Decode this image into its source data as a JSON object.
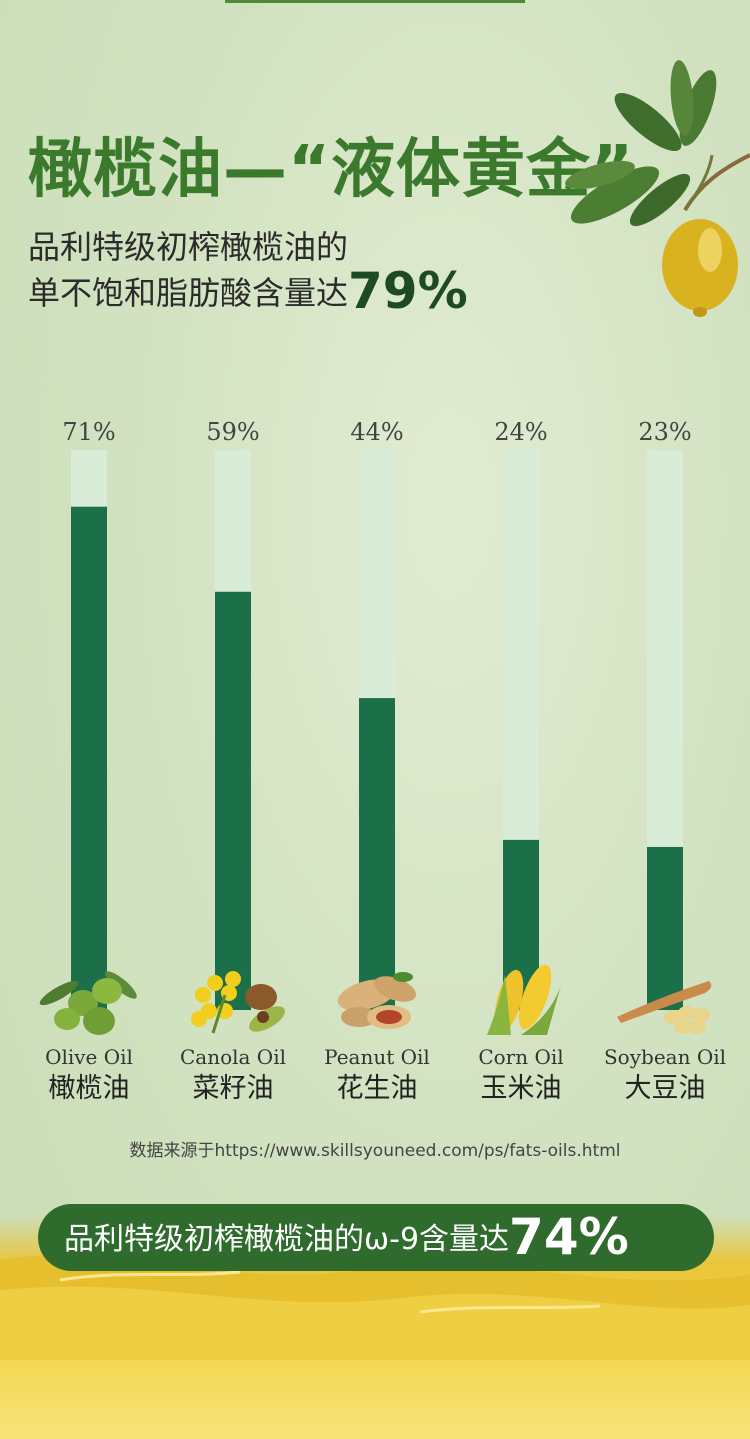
{
  "title": "橄榄油—“液体黄金”",
  "subtitle_line1": "品利特级初榨橄榄油的",
  "subtitle_line2_prefix": "单不饱和脂肪酸含量达",
  "subtitle_line2_value": "79%",
  "source_note": "数据来源于https://www.skillsyouneed.com/ps/fats-oils.html",
  "banner": {
    "prefix": "品利特级初榨橄榄油的ω-9含量达",
    "value": "74%"
  },
  "colors": {
    "title_green": "#3b7a2c",
    "bar_fill": "#1b7049",
    "bar_track": "#d9ecd8",
    "banner_bg": "#2f6b2c",
    "oil_yellow": "#e9c53a"
  },
  "chart_data": {
    "type": "bar",
    "categories_en": [
      "Olive Oil",
      "Canola Oil",
      "Peanut Oil",
      "Corn Oil",
      "Soybean Oil"
    ],
    "categories_zh": [
      "橄榄油",
      "菜籽油",
      "花生油",
      "玉米油",
      "大豆油"
    ],
    "values": [
      71,
      59,
      44,
      24,
      23
    ],
    "value_labels": [
      "71%",
      "59%",
      "44%",
      "24%",
      "23%"
    ],
    "icons": [
      "olive-icon",
      "canola-icon",
      "peanut-icon",
      "corn-icon",
      "soybean-icon"
    ],
    "ylim": [
      0,
      100
    ],
    "grid": false,
    "legend": "none"
  }
}
